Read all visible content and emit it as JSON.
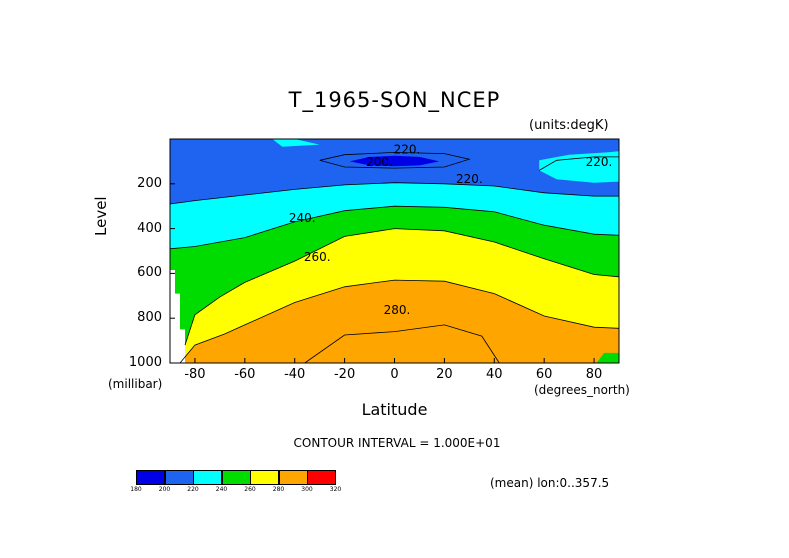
{
  "chart_data": {
    "type": "contour",
    "title": "T_1965-SON_NCEP",
    "units_note": "(units:degK)",
    "xlabel": "Latitude",
    "x_unit": "(degrees_north)",
    "ylabel": "Level",
    "y_unit": "(millibar)",
    "xlim": [
      -90,
      90
    ],
    "ylim": [
      1000,
      0
    ],
    "x_ticks": [
      "-80",
      "-60",
      "-40",
      "-20",
      "0",
      "20",
      "40",
      "60",
      "80"
    ],
    "y_ticks": [
      "200",
      "400",
      "600",
      "800",
      "1000"
    ],
    "contour_interval": "CONTOUR INTERVAL = 1.000E+01",
    "mean_note": "(mean) lon:0..357.5",
    "contour_labels": [
      {
        "text": "220.",
        "x": 5,
        "y": 50
      },
      {
        "text": "200.",
        "x": -6,
        "y": 105
      },
      {
        "text": "220.",
        "x": 30,
        "y": 180
      },
      {
        "text": "220.",
        "x": 82,
        "y": 105
      },
      {
        "text": "240.",
        "x": -37,
        "y": 355
      },
      {
        "text": "260.",
        "x": -31,
        "y": 530
      },
      {
        "text": "280.",
        "x": 1,
        "y": 765
      }
    ],
    "colorbar": {
      "levels": [
        "180",
        "200",
        "220",
        "240",
        "260",
        "280",
        "300",
        "320"
      ],
      "colors": [
        "#0000e6",
        "#1e64f0",
        "#00ffff",
        "#00dc00",
        "#ffff00",
        "#ffa500",
        "#ff0000"
      ]
    },
    "band_colors": {
      "below_200": "#0000e6",
      "200_220": "#1e64f0",
      "220_240": "#00ffff",
      "240_260": "#00dc00",
      "260_280": "#ffff00",
      "280_300": "#ffa500"
    }
  }
}
